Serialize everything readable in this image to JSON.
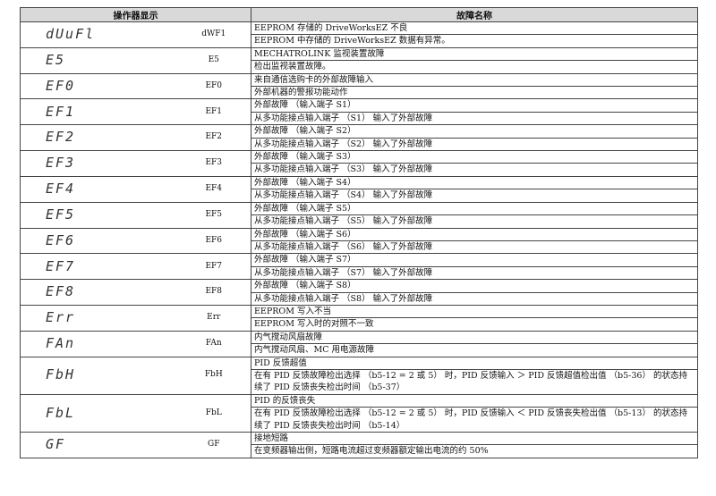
{
  "table": {
    "headers": [
      "操作器显示",
      "故障名称"
    ],
    "rows": [
      {
        "display": "dUuFl",
        "code": "dWF1",
        "lines": [
          "EEPROM 存储的 DriveWorksEZ 不良",
          "EEPROM 中存储的 DriveWorksEZ 数据有异常。"
        ]
      },
      {
        "display": "E5",
        "code": "E5",
        "lines": [
          "MECHATROLINK 监视装置故障",
          "检出监视装置故障。"
        ]
      },
      {
        "display": "EF0",
        "code": "EF0",
        "lines": [
          "来自通信选购卡的外部故障输入",
          "外部机器的警报功能动作"
        ]
      },
      {
        "display": "EF1",
        "code": "EF1",
        "lines": [
          "外部故障 （输入端子 S1）",
          "从多功能接点输入端子 （S1） 输入了外部故障"
        ]
      },
      {
        "display": "EF2",
        "code": "EF2",
        "lines": [
          "外部故障 （输入端子 S2）",
          "从多功能接点输入端子 （S2） 输入了外部故障"
        ]
      },
      {
        "display": "EF3",
        "code": "EF3",
        "lines": [
          "外部故障 （输入端子 S3）",
          "从多功能接点输入端子 （S3） 输入了外部故障"
        ]
      },
      {
        "display": "EF4",
        "code": "EF4",
        "lines": [
          "外部故障 （输入端子 S4）",
          "从多功能接点输入端子 （S4） 输入了外部故障"
        ]
      },
      {
        "display": "EF5",
        "code": "EF5",
        "lines": [
          "外部故障 （输入端子 S5）",
          "从多功能接点输入端子 （S5） 输入了外部故障"
        ]
      },
      {
        "display": "EF6",
        "code": "EF6",
        "lines": [
          "外部故障 （输入端子 S6）",
          "从多功能接点输入端子 （S6） 输入了外部故障"
        ]
      },
      {
        "display": "EF7",
        "code": "EF7",
        "lines": [
          "外部故障 （输入端子 S7）",
          "从多功能接点输入端子 （S7） 输入了外部故障"
        ]
      },
      {
        "display": "EF8",
        "code": "EF8",
        "lines": [
          "外部故障 （输入端子 S8）",
          "从多功能接点输入端子 （S8） 输入了外部故障"
        ]
      },
      {
        "display": "Err",
        "code": "Err",
        "lines": [
          "EEPROM 写入不当",
          "EEPROM 写入时的对照不一致"
        ]
      },
      {
        "display": "FAn",
        "code": "FAn",
        "lines": [
          "内气搅动风扇故障",
          "内气搅动风扇、MC 用电源故障"
        ]
      },
      {
        "display": "FbH",
        "code": "FbH",
        "lines": [
          "PID 反馈超值",
          "在有 PID 反馈故障检出选择 （b5-12 = 2 或 5） 时，PID 反馈输入 ＞ PID 反馈超值检出值 （b5-36） 的状态持续了 PID 反馈丧失检出时间 （b5-37）"
        ]
      },
      {
        "display": "FbL",
        "code": "FbL",
        "lines": [
          "PID 的反馈丧失",
          "在有 PID 反馈故障检出选择 （b5-12 = 2 或 5） 时，PID 反馈输入 ＜ PID 反馈丧失检出值 （b5-13） 的状态持续了 PID 反馈丧失检出时间 （b5-14）"
        ]
      },
      {
        "display": "GF",
        "code": "GF",
        "lines": [
          "接地短路",
          "在变频器输出侧，短路电流超过变频器额定输出电流的约 50%"
        ]
      }
    ]
  }
}
